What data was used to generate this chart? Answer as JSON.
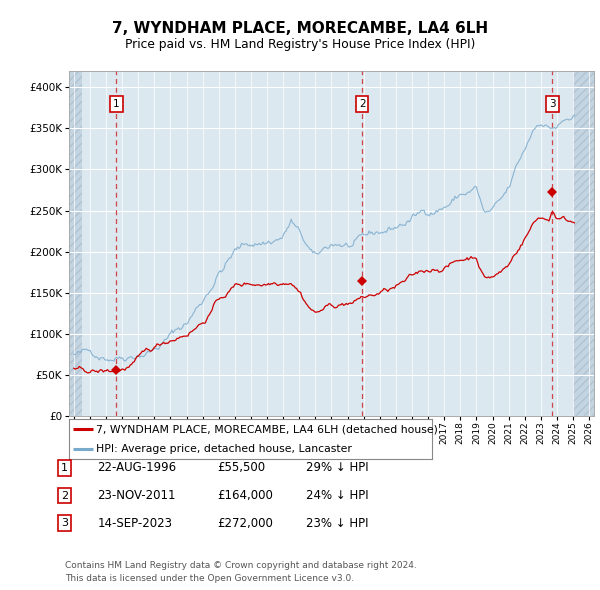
{
  "title": "7, WYNDHAM PLACE, MORECAMBE, LA4 6LH",
  "subtitle": "Price paid vs. HM Land Registry's House Price Index (HPI)",
  "ylim": [
    0,
    420000
  ],
  "xlim_start": 1993.7,
  "xlim_end": 2026.3,
  "yticks": [
    0,
    50000,
    100000,
    150000,
    200000,
    250000,
    300000,
    350000,
    400000
  ],
  "ytick_labels": [
    "£0",
    "£50K",
    "£100K",
    "£150K",
    "£200K",
    "£250K",
    "£300K",
    "£350K",
    "£400K"
  ],
  "bg_color": "#dce8f0",
  "hatch_color": "#c4d4e0",
  "grid_color": "#ffffff",
  "red_line_color": "#cc0000",
  "blue_line_color": "#7aaacc",
  "vline_color": "#cc3333",
  "transactions": [
    {
      "num": 1,
      "date": "22-AUG-1996",
      "year": 1996.64,
      "price": 55500,
      "label": "29% ↓ HPI"
    },
    {
      "num": 2,
      "date": "23-NOV-2011",
      "year": 2011.9,
      "price": 164000,
      "label": "24% ↓ HPI"
    },
    {
      "num": 3,
      "date": "14-SEP-2023",
      "year": 2023.71,
      "price": 272000,
      "label": "23% ↓ HPI"
    }
  ],
  "legend_line1": "7, WYNDHAM PLACE, MORECAMBE, LA4 6LH (detached house)",
  "legend_line2": "HPI: Average price, detached house, Lancaster",
  "copyright": "Contains HM Land Registry data © Crown copyright and database right 2024.\nThis data is licensed under the Open Government Licence v3.0."
}
